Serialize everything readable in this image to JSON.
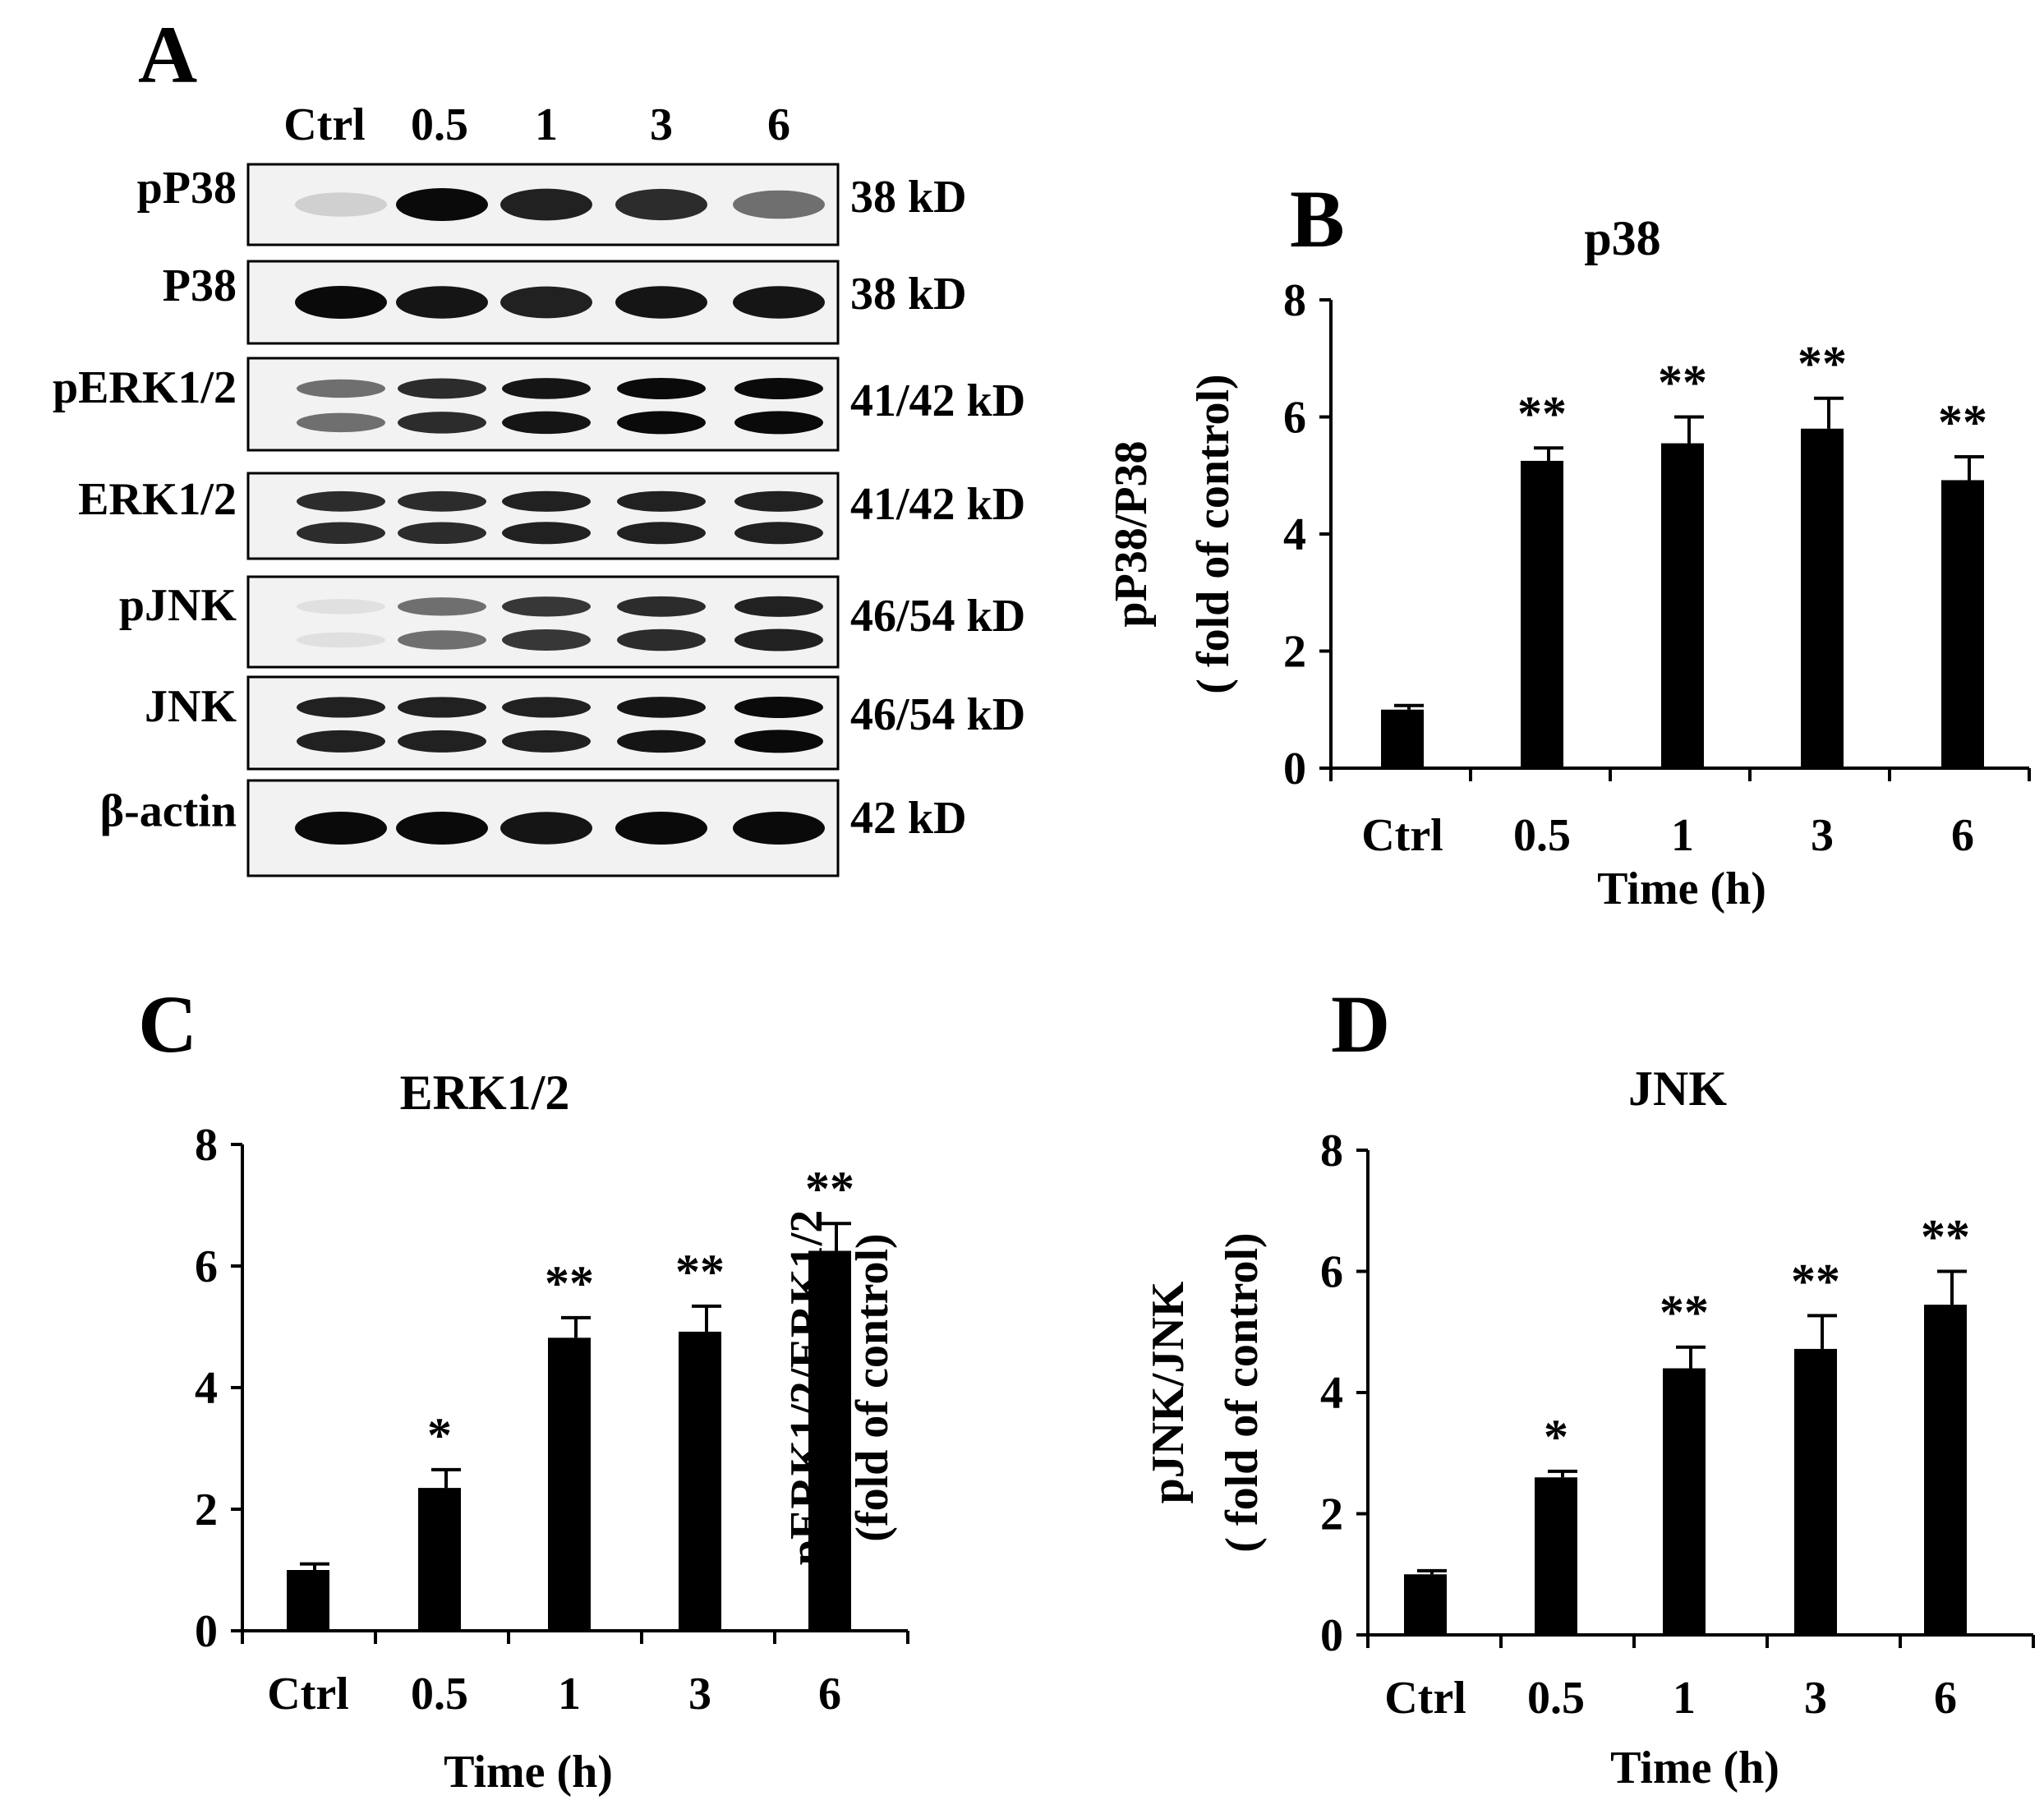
{
  "figure": {
    "panel_a": {
      "letter": "A",
      "lanes": [
        "Ctrl",
        "0.5",
        "1",
        "3",
        "6"
      ],
      "blots": [
        {
          "label": "pP38",
          "size": "38 kD",
          "bands": [
            0.12,
            1.0,
            0.9,
            0.85,
            0.55
          ],
          "band_layers": 1
        },
        {
          "label": "P38",
          "size": "38 kD",
          "bands": [
            1.0,
            0.95,
            0.9,
            0.95,
            0.95
          ],
          "band_layers": 1
        },
        {
          "label": "pERK1/2",
          "size": "41/42 kD",
          "bands": [
            0.55,
            0.85,
            0.95,
            1.0,
            1.0
          ],
          "band_layers": 2
        },
        {
          "label": "ERK1/2",
          "size": "41/42 kD",
          "bands": [
            0.85,
            0.85,
            0.9,
            0.9,
            0.9
          ],
          "band_layers": 2
        },
        {
          "label": "pJNK",
          "size": "46/54 kD",
          "bands": [
            0.05,
            0.55,
            0.8,
            0.85,
            0.9
          ],
          "band_layers": 2
        },
        {
          "label": "JNK",
          "size": "46/54 kD",
          "bands": [
            0.9,
            0.9,
            0.9,
            0.95,
            1.0
          ],
          "band_layers": 2
        },
        {
          "label": "β-actin",
          "size": "42 kD",
          "bands": [
            1.0,
            1.0,
            0.95,
            1.0,
            1.0
          ],
          "band_layers": 1
        }
      ]
    }
  },
  "chart_data": [
    {
      "panel": "B",
      "type": "bar",
      "title": "p38",
      "categories": [
        "Ctrl",
        "0.5",
        "1",
        "3",
        "6"
      ],
      "values": [
        1.0,
        5.25,
        5.55,
        5.8,
        4.92
      ],
      "errors": [
        0.07,
        0.22,
        0.45,
        0.52,
        0.4
      ],
      "significance": [
        "",
        "**",
        "**",
        "**",
        "**"
      ],
      "xlabel": "Time (h)",
      "ylabel": [
        "pP38/P38",
        "( fold of control)"
      ],
      "ylim": [
        0,
        8
      ],
      "yticks": [
        0,
        2,
        4,
        6,
        8
      ],
      "grid": false,
      "bar_color": "#000000"
    },
    {
      "panel": "C",
      "type": "bar",
      "title": "ERK1/2",
      "categories": [
        "Ctrl",
        "0.5",
        "1",
        "3",
        "6"
      ],
      "values": [
        1.0,
        2.35,
        4.82,
        4.92,
        6.25
      ],
      "errors": [
        0.1,
        0.3,
        0.33,
        0.42,
        0.45
      ],
      "significance": [
        "",
        "*",
        "**",
        "**",
        "**"
      ],
      "xlabel": "Time (h)",
      "ylabel": [
        "pERK1/2/ERK1/2",
        "(fold of control)"
      ],
      "ylim": [
        0,
        8
      ],
      "yticks": [
        0,
        2,
        4,
        6,
        8
      ],
      "grid": false,
      "bar_color": "#000000"
    },
    {
      "panel": "D",
      "type": "bar",
      "title": "JNK",
      "categories": [
        "Ctrl",
        "0.5",
        "1",
        "3",
        "6"
      ],
      "values": [
        1.0,
        2.6,
        4.4,
        4.72,
        5.45
      ],
      "errors": [
        0.06,
        0.1,
        0.35,
        0.55,
        0.55
      ],
      "significance": [
        "",
        "*",
        "**",
        "**",
        "**"
      ],
      "xlabel": "Time (h)",
      "ylabel": [
        "pJNK/JNK",
        "( fold of control)"
      ],
      "ylim": [
        0,
        8
      ],
      "yticks": [
        0,
        2,
        4,
        6,
        8
      ],
      "grid": false,
      "bar_color": "#000000"
    }
  ]
}
